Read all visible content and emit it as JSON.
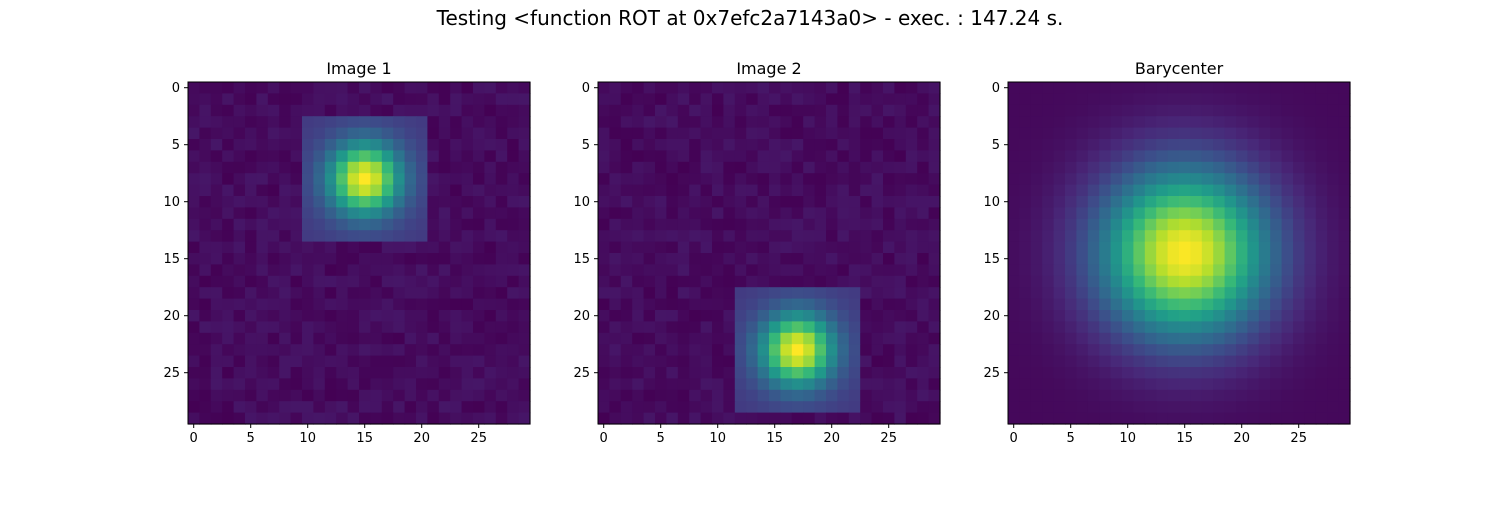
{
  "figure": {
    "suptitle": "Testing <function ROT at 0x7efc2a7143a0> - exec. : 147.24 s."
  },
  "chart_data": [
    {
      "type": "heatmap",
      "title": "Image 1",
      "colormap": "viridis",
      "grid_size": [
        30,
        30
      ],
      "xlim": [
        -0.5,
        29.5
      ],
      "ylim": [
        29.5,
        -0.5
      ],
      "xticks": [
        0,
        5,
        10,
        15,
        20,
        25
      ],
      "yticks": [
        0,
        5,
        10,
        15,
        20,
        25
      ],
      "blob": {
        "center_x": 15,
        "center_y": 8,
        "sigma": 2.2,
        "support_x": [
          10,
          20
        ],
        "support_y": [
          3,
          13
        ]
      },
      "background_noise": 0.06
    },
    {
      "type": "heatmap",
      "title": "Image 2",
      "colormap": "viridis",
      "grid_size": [
        30,
        30
      ],
      "xlim": [
        -0.5,
        29.5
      ],
      "ylim": [
        29.5,
        -0.5
      ],
      "xticks": [
        0,
        5,
        10,
        15,
        20,
        25
      ],
      "yticks": [
        0,
        5,
        10,
        15,
        20,
        25
      ],
      "blob": {
        "center_x": 17,
        "center_y": 23,
        "sigma": 2.2,
        "support_x": [
          12,
          22
        ],
        "support_y": [
          18,
          28
        ]
      },
      "background_noise": 0.06
    },
    {
      "type": "heatmap",
      "title": "Barycenter",
      "colormap": "viridis",
      "grid_size": [
        30,
        30
      ],
      "xlim": [
        -0.5,
        29.5
      ],
      "ylim": [
        29.5,
        -0.5
      ],
      "xticks": [
        0,
        5,
        10,
        15,
        20,
        25
      ],
      "yticks": [
        0,
        5,
        10,
        15,
        20,
        25
      ],
      "blob": {
        "center_x": 15,
        "center_y": 14.5,
        "sigma": 5.2,
        "support_x": [
          0,
          29
        ],
        "support_y": [
          0,
          29
        ]
      },
      "background_noise": 0.015
    }
  ]
}
